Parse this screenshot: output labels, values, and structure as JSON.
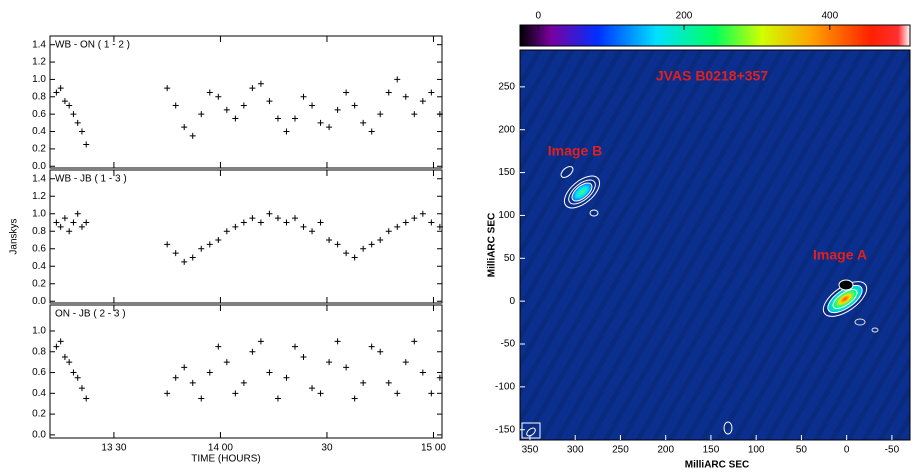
{
  "chart_data": [
    {
      "type": "scatter",
      "title": "WB - ON ( 1 - 2 )",
      "color": "#000000",
      "x": [
        13.23,
        13.25,
        13.27,
        13.29,
        13.31,
        13.33,
        13.35,
        13.37,
        13.75,
        13.79,
        13.83,
        13.87,
        13.91,
        13.95,
        13.99,
        14.03,
        14.07,
        14.11,
        14.15,
        14.19,
        14.23,
        14.27,
        14.31,
        14.35,
        14.39,
        14.43,
        14.47,
        14.51,
        14.55,
        14.59,
        14.63,
        14.67,
        14.71,
        14.75,
        14.79,
        14.83,
        14.87,
        14.91,
        14.95,
        14.99,
        15.03
      ],
      "values": [
        0.85,
        0.9,
        0.75,
        0.7,
        0.6,
        0.5,
        0.4,
        0.25,
        0.9,
        0.7,
        0.45,
        0.35,
        0.6,
        0.85,
        0.8,
        0.65,
        0.55,
        0.7,
        0.9,
        0.95,
        0.75,
        0.55,
        0.4,
        0.55,
        0.8,
        0.7,
        0.5,
        0.45,
        0.65,
        0.85,
        0.7,
        0.5,
        0.4,
        0.6,
        0.85,
        1.0,
        0.8,
        0.6,
        0.75,
        0.85,
        0.6
      ],
      "xlim": [
        13.2,
        15.04
      ],
      "ylim": [
        -0.02,
        1.5
      ],
      "yticks": [
        {
          "value": 0,
          "label": "0.0"
        },
        0.2,
        0.4,
        0.6,
        0.8,
        {
          "value": 1,
          "label": "1.0"
        },
        1.2,
        1.4
      ]
    },
    {
      "type": "scatter",
      "title": "WB - JB ( 1 - 3 )",
      "ylabel": "Janskys",
      "color": "#000000",
      "x": [
        13.23,
        13.25,
        13.27,
        13.29,
        13.31,
        13.33,
        13.35,
        13.37,
        13.75,
        13.79,
        13.83,
        13.87,
        13.91,
        13.95,
        13.99,
        14.03,
        14.07,
        14.11,
        14.15,
        14.19,
        14.23,
        14.27,
        14.31,
        14.35,
        14.39,
        14.43,
        14.47,
        14.51,
        14.55,
        14.59,
        14.63,
        14.67,
        14.71,
        14.75,
        14.79,
        14.83,
        14.87,
        14.91,
        14.95,
        14.99,
        15.03
      ],
      "values": [
        0.9,
        0.85,
        0.95,
        0.8,
        0.9,
        1.0,
        0.85,
        0.9,
        0.65,
        0.55,
        0.45,
        0.5,
        0.6,
        0.65,
        0.7,
        0.8,
        0.85,
        0.9,
        0.95,
        0.9,
        1.0,
        0.95,
        0.9,
        0.95,
        0.85,
        0.8,
        0.9,
        0.7,
        0.65,
        0.55,
        0.5,
        0.6,
        0.65,
        0.7,
        0.8,
        0.85,
        0.9,
        0.95,
        1.0,
        0.9,
        0.85
      ],
      "xlim": [
        13.2,
        15.04
      ],
      "ylim": [
        -0.02,
        1.5
      ],
      "yticks": [
        {
          "value": 0,
          "label": "0.0"
        },
        0.2,
        0.4,
        0.6,
        0.8,
        {
          "value": 1,
          "label": "1.0"
        },
        1.2,
        1.4
      ]
    },
    {
      "type": "scatter",
      "title": "ON - JB ( 2 - 3 )",
      "xlabel": "TIME (HOURS)",
      "color": "#000000",
      "x": [
        13.23,
        13.25,
        13.27,
        13.29,
        13.31,
        13.33,
        13.35,
        13.37,
        13.75,
        13.79,
        13.83,
        13.87,
        13.91,
        13.95,
        13.99,
        14.03,
        14.07,
        14.11,
        14.15,
        14.19,
        14.23,
        14.27,
        14.31,
        14.35,
        14.39,
        14.43,
        14.47,
        14.51,
        14.55,
        14.59,
        14.63,
        14.67,
        14.71,
        14.75,
        14.79,
        14.83,
        14.87,
        14.91,
        14.95,
        14.99,
        15.03
      ],
      "values": [
        0.85,
        0.9,
        0.75,
        0.7,
        0.6,
        0.55,
        0.45,
        0.35,
        0.4,
        0.55,
        0.65,
        0.5,
        0.35,
        0.6,
        0.85,
        0.7,
        0.4,
        0.5,
        0.8,
        0.9,
        0.6,
        0.35,
        0.55,
        0.85,
        0.75,
        0.45,
        0.4,
        0.7,
        0.9,
        0.65,
        0.35,
        0.5,
        0.85,
        0.8,
        0.5,
        0.4,
        0.7,
        0.9,
        0.6,
        0.4,
        0.55
      ],
      "xlim": [
        13.2,
        15.04
      ],
      "ylim": [
        -0.03,
        1.25
      ],
      "xticks": [
        {
          "value": 13.5,
          "label": "13 30"
        },
        {
          "value": 14,
          "label": "14 00"
        },
        {
          "value": 14.5,
          "label": "30"
        },
        {
          "value": 15,
          "label": "15 00"
        }
      ],
      "yticks": [
        {
          "value": 0,
          "label": "0.0"
        },
        0.2,
        0.4,
        0.6,
        0.8,
        {
          "value": 1,
          "label": "1.0"
        }
      ]
    },
    {
      "type": "image",
      "title": "JVAS B0218+357",
      "annotations": [
        "Image B",
        "Image A"
      ],
      "xlabel": "MilliARC SEC",
      "ylabel": "MilliARC SEC",
      "xlim": [
        361,
        -70
      ],
      "ylim": [
        -162,
        293
      ],
      "xticks": [
        350,
        300,
        250,
        200,
        150,
        100,
        50,
        0,
        -50
      ],
      "yticks": [
        -150,
        -100,
        -50,
        0,
        50,
        100,
        150,
        200,
        250
      ],
      "clim": [
        -25,
        510
      ],
      "cticks": [
        0,
        200,
        400
      ]
    }
  ]
}
